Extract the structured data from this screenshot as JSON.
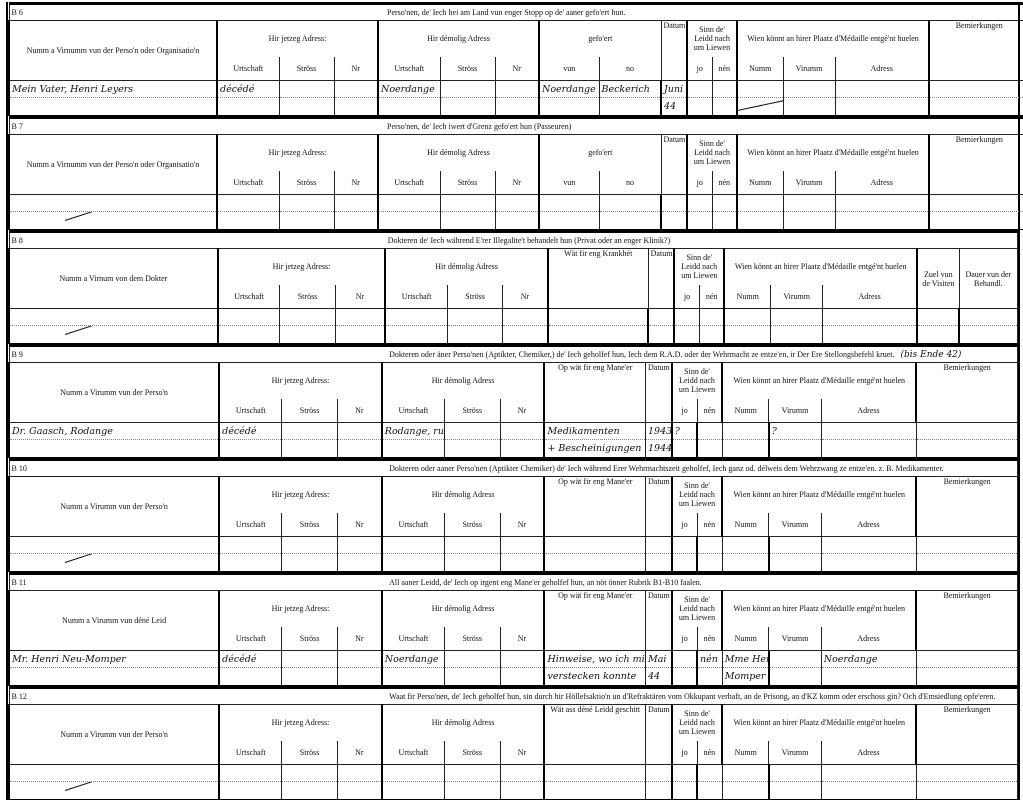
{
  "headers": {
    "name_person_org": "Numm a Virnumm vun der Perso'n oder Organisatio'n",
    "name_person": "Numm a Virumm vun der Perso'n",
    "name_dokter": "Numm a Virnum von dem Dokter",
    "name_leid": "Numm a Virumm vun déné Leid",
    "jetzeg": "Hir jetzeg Adress:",
    "demolig": "Hir démolig Adress",
    "urtschaft": "Urtschaft",
    "stross": "Ströss",
    "nr": "Nr",
    "gefoert": "gefo'ert",
    "vun": "vun",
    "no": "no",
    "datum": "Datum",
    "sinn": "Sinn de' Leidd nach um Liewen",
    "jo": "jo",
    "nen": "nén",
    "wien": "Wien könnt an hirer Plaatz d'Médaille entgé'nt huelen",
    "numm": "Numm",
    "virumm": "Virumm",
    "adress": "Adress",
    "bemierkungen": "Bemierkungen",
    "krankhet": "Wät fir eng Krankhét",
    "zuel": "Zuel vun de Visiten",
    "dauer": "Dauer vun der Behandl.",
    "op_wat": "Op wät fir eng Mane'er",
    "wat_leid": "Wät ass déné Leidd geschitt"
  },
  "sections": [
    {
      "code": "B 6",
      "title": "Perso'nen, de' Iech hei am Land vun enger Stopp op de' aaner gefo'ert hun.",
      "type": "transport",
      "rows": [
        [
          "Mein Vater, Henri Leyers",
          "décédé",
          "",
          "",
          "Noerdange",
          "",
          "",
          "Noerdange",
          "Beckerich",
          "Juni",
          "",
          "",
          "",
          "",
          "",
          ""
        ],
        [
          "",
          "",
          "",
          "",
          "",
          "",
          "",
          "",
          "",
          "44",
          "",
          "",
          "",
          "",
          "",
          ""
        ]
      ]
    },
    {
      "code": "B 7",
      "title": "Perso'nen, de' Iech iwert d'Grenz gefo'ert hun (Passeuren)",
      "type": "transport",
      "rows": []
    },
    {
      "code": "B 8",
      "title": "Dokteren de' Iech während E'rer Illegalite't behandelt hun (Privat oder an enger Klinik?)",
      "type": "dokter",
      "rows": []
    },
    {
      "code": "B 9",
      "title": "Dokteren oder äner Perso'nen (Aptikter, Chemiker,) de' Iech geholfef hun, Iech dem R.A.D. oder der Wehrmacht ze entze'en, ir Der Ere Stellongsbefehl kruet.",
      "note": "(bis Ende 42)",
      "type": "help",
      "rows": [
        [
          "Dr. Gaasch, Rodange",
          "décédé",
          "",
          "",
          "Rodange, rue de Longwy",
          "",
          "",
          "Medikamenten",
          "1943/",
          "?",
          "",
          "",
          "?",
          "",
          ""
        ],
        [
          "",
          "",
          "",
          "",
          "",
          "",
          "",
          "+ Bescheinigungen",
          "1944",
          "",
          "",
          "",
          "",
          "",
          ""
        ]
      ]
    },
    {
      "code": "B 10",
      "title": "Dokteren oder aaner Perso'nen (Aptikter Chemiker) de' Iech während Erer Wehrmachtszeit geholfef, Iech ganz od. délweis dem Wehrzwang ze entze'en. z. B. Medikamenter.",
      "type": "help",
      "rows": []
    },
    {
      "code": "B 11",
      "title": "All aaner Leidd, de' Iech op irgent eng Mane'er geholfef hun, an nöt önner Rubrik B1-B10 faalen.",
      "type": "leid",
      "rows": [
        [
          "Mr. Henri Neu-Momper",
          "décédé",
          "",
          "",
          "Noerdange",
          "",
          "",
          "Hinweise, wo ich mich",
          "Mai",
          "",
          "nén",
          "Mme Henri Neu-",
          "",
          "Noerdange",
          ""
        ],
        [
          "",
          "",
          "",
          "",
          "",
          "",
          "",
          "verstecken konnte",
          "44",
          "",
          "",
          "Momper",
          "",
          "",
          ""
        ]
      ]
    },
    {
      "code": "B 12",
      "title": "Waat fir Perso'nen, de' Iech geholfef hun, sin durch hir Höllefsaktio'n un d'Refraktären vom Okkupant verhaft, an de Prisong, an d'KZ komm oder erschoss gin? Och d'Emsiedlung opfe'eren.",
      "type": "fate",
      "rows": []
    }
  ]
}
